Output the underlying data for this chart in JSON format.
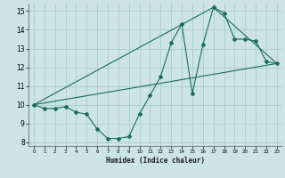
{
  "xlabel": "Humidex (Indice chaleur)",
  "background_color": "#cde4e4",
  "grid_color": "#b0d0d0",
  "line_color": "#1a6b60",
  "xlim": [
    -0.5,
    23.5
  ],
  "ylim": [
    7.8,
    15.4
  ],
  "xticks": [
    0,
    1,
    2,
    3,
    4,
    5,
    6,
    7,
    8,
    9,
    10,
    11,
    12,
    13,
    14,
    15,
    16,
    17,
    18,
    19,
    20,
    21,
    22,
    23
  ],
  "yticks": [
    8,
    9,
    10,
    11,
    12,
    13,
    14,
    15
  ],
  "line1_x": [
    0,
    1,
    2,
    3,
    4,
    5,
    6,
    7,
    8,
    9,
    10,
    11,
    12,
    13,
    14,
    15,
    16,
    17,
    18,
    19,
    20,
    21,
    22,
    23
  ],
  "line1_y": [
    10.0,
    9.8,
    9.8,
    9.9,
    9.6,
    9.5,
    8.7,
    8.2,
    8.2,
    8.3,
    9.5,
    10.5,
    11.5,
    13.3,
    14.3,
    10.6,
    13.2,
    15.2,
    14.9,
    13.5,
    13.5,
    13.4,
    12.3,
    12.2
  ],
  "line2_x": [
    0,
    23
  ],
  "line2_y": [
    10.0,
    12.2
  ],
  "line3_x": [
    0,
    17,
    23
  ],
  "line3_y": [
    10.0,
    15.2,
    12.2
  ]
}
